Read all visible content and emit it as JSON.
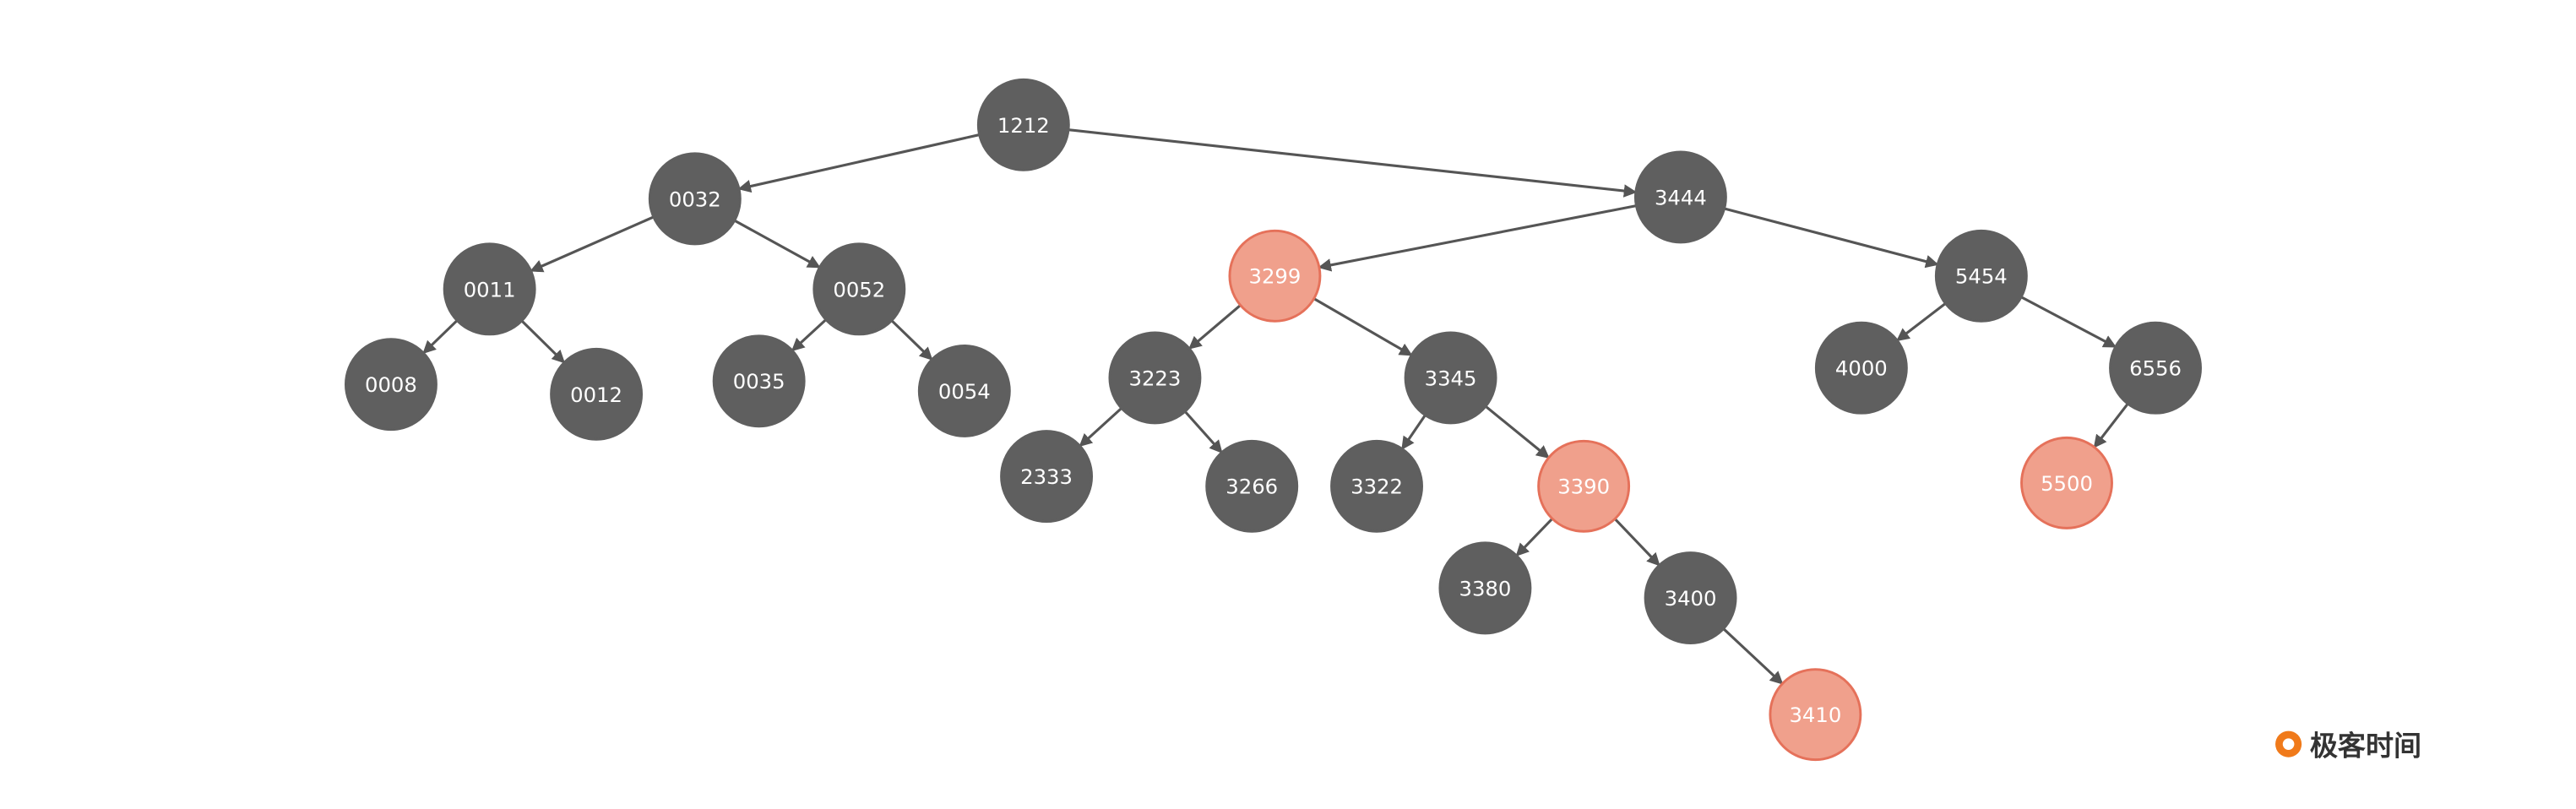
{
  "nodes": [
    {
      "label": "1212",
      "color": "#5f5f5f"
    },
    {
      "label": "0032",
      "color": "#5f5f5f"
    },
    {
      "label": "3444",
      "color": "#5f5f5f"
    },
    {
      "label": "0011",
      "color": "#5f5f5f"
    },
    {
      "label": "0052",
      "color": "#5f5f5f"
    },
    {
      "label": "3299",
      "color": "#f0a08c"
    },
    {
      "label": "5454",
      "color": "#5f5f5f"
    },
    {
      "label": "0008",
      "color": "#5f5f5f"
    },
    {
      "label": "0012",
      "color": "#5f5f5f"
    },
    {
      "label": "0035",
      "color": "#5f5f5f"
    },
    {
      "label": "0054",
      "color": "#5f5f5f"
    },
    {
      "label": "3223",
      "color": "#5f5f5f"
    },
    {
      "label": "3345",
      "color": "#5f5f5f"
    },
    {
      "label": "4000",
      "color": "#5f5f5f"
    },
    {
      "label": "6556",
      "color": "#5f5f5f"
    },
    {
      "label": "2333",
      "color": "#5f5f5f"
    },
    {
      "label": "3266",
      "color": "#5f5f5f"
    },
    {
      "label": "3322",
      "color": "#5f5f5f"
    },
    {
      "label": "3390",
      "color": "#f0a08c"
    },
    {
      "label": "5500",
      "color": "#f0a08c"
    },
    {
      "label": "3380",
      "color": "#5f5f5f"
    },
    {
      "label": "3400",
      "color": "#5f5f5f"
    },
    {
      "label": "3410",
      "color": "#f0a08c"
    }
  ],
  "logo": "极客时间"
}
